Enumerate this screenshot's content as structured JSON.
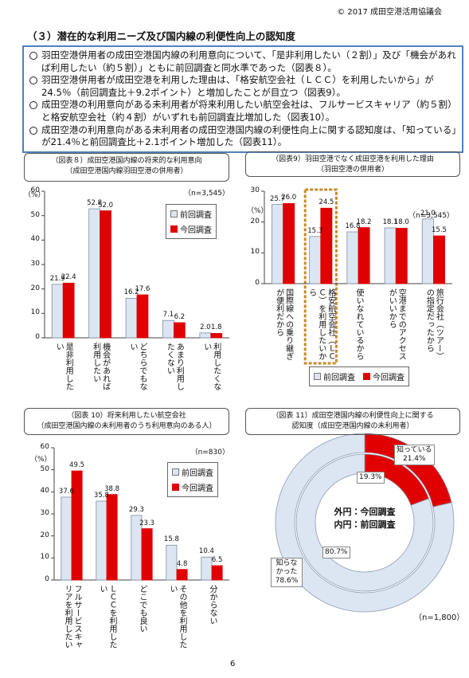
{
  "header": "© 2017 成田空港活用協議会",
  "section_title": "（３）潜在的な利用ニーズ及び国内線の利便性向上の認知度",
  "bullets": [
    "羽田空港併用者の成田空港国内線の利用意向について、「是非利用したい（２割）」及び「機会があれば利用したい（約５割）」ともに前回調査と同水準であった（図表８）。",
    "羽田空港併用者が成田空港を利用した理由は、「格安航空会社（ＬＣＣ）を利用したいから」が24.5％（前回調査比＋9.2ポイント）と増加したことが目立つ（図表9）。",
    "成田空港の利用意向がある未利用者が将来利用したい航空会社は、フルサービスキャリア（約５割）と格安航空会社（約４割）がいずれも前回調査比増加した（図表10）。",
    "成田空港の利用意向がある未利用者の成田空港国内線の利便性向上に関する認知度は、「知っている」が21.4％と前回調査比＋2.1ポイント増加した（図表11）。"
  ],
  "page_number": "6",
  "chart_data": [
    {
      "type": "bar",
      "title": "（図表８）成田空港国内線の将来的な利用意向",
      "subtitle": "（成田空港国内線羽田空港の併用者）",
      "unit": "（%）",
      "note": "（n=3,545）",
      "legend": "upper right",
      "categories": [
        "是非利用したい",
        "機会があれば利用したい",
        "どちらでもない",
        "あまり利用したくない",
        "利用したくない"
      ],
      "series": [
        {
          "name": "前回調査",
          "color": "#dce6f2",
          "values": [
            21.9,
            52.8,
            16.2,
            7.1,
            2.0
          ],
          "value_labels": [
            "21.9",
            "52.8",
            "16.2",
            "7.1",
            "2.0"
          ]
        },
        {
          "name": "今回調査",
          "color": "#e00000",
          "values": [
            22.4,
            52.0,
            17.6,
            6.2,
            1.8
          ],
          "value_labels": [
            "22.4",
            "52.0",
            "17.6",
            "6.2",
            "1.8"
          ]
        }
      ],
      "ylim": [
        0,
        60
      ],
      "yticks": [
        0,
        10,
        20,
        30,
        40,
        50,
        60
      ]
    },
    {
      "type": "bar",
      "title": "（図表9）羽田空港でなく成田空港を利用した理由",
      "subtitle": "（羽田空港の併用者）",
      "unit": "（%）",
      "note": "（n=3,545）",
      "legend": "bottom",
      "categories": [
        "国際線への乗り継ぎが便利だから",
        "格安航空会社（ＬＣＣ）を利用したいから",
        "使いなれているから",
        "空港までのアクセスがいいから",
        "旅行会社（ツアー）の指定だったから"
      ],
      "series": [
        {
          "name": "前回調査",
          "color": "#dce6f2",
          "values": [
            25.7,
            15.3,
            16.8,
            18.1,
            21.0
          ],
          "value_labels": [
            "25.7",
            "15.3",
            "16.8",
            "18.1",
            "21.0"
          ]
        },
        {
          "name": "今回調査",
          "color": "#e00000",
          "values": [
            26.0,
            24.5,
            18.2,
            18.0,
            15.5
          ],
          "value_labels": [
            "26.0",
            "24.5",
            "18.2",
            "18.0",
            "15.5"
          ]
        }
      ],
      "ylim": [
        0,
        30
      ],
      "yticks": [
        0,
        10,
        20,
        30
      ]
    },
    {
      "type": "bar",
      "title": "（図表 10）将来利用したい航空会社",
      "subtitle": "（成田空港国内線の未利用者のうち利用意向のある人）",
      "unit": "（%）",
      "note": "（n=830）",
      "legend": "upper right",
      "categories": [
        "フルサービスキャリアを利用したい",
        "ＬＣＣを利用したい",
        "どこでも良い",
        "その他を利用したい",
        "分からない"
      ],
      "series": [
        {
          "name": "前回調査",
          "color": "#dce6f2",
          "values": [
            37.6,
            35.8,
            29.3,
            15.8,
            10.4
          ],
          "value_labels": [
            "37.6",
            "35.8",
            "29.3",
            "15.8",
            "10.4"
          ]
        },
        {
          "name": "今回調査",
          "color": "#e00000",
          "values": [
            49.5,
            38.8,
            23.3,
            4.8,
            6.5
          ],
          "value_labels": [
            "49.5",
            "38.8",
            "23.3",
            "4.8",
            "6.5"
          ]
        }
      ],
      "ylim": [
        0,
        60
      ],
      "yticks": [
        0,
        10,
        20,
        30,
        40,
        50,
        60
      ]
    },
    {
      "type": "donut",
      "title": "（図表 11）成田空港国内線の利便性向上に関する",
      "subtitle": "認知度（成田空港国内線の未利用者）",
      "note": "（n=1,800）",
      "categories": [
        "知っている",
        "知らなかった"
      ],
      "colors": [
        "#e00000",
        "#dce6f2"
      ],
      "series": [
        {
          "name": "外円：今回調査",
          "values": [
            21.4,
            78.6
          ],
          "value_labels": [
            "21.4%",
            "78.6%"
          ]
        },
        {
          "name": "内円：前回調査",
          "values": [
            19.3,
            80.7
          ],
          "value_labels": [
            "19.3%",
            "80.7%"
          ]
        }
      ]
    }
  ]
}
